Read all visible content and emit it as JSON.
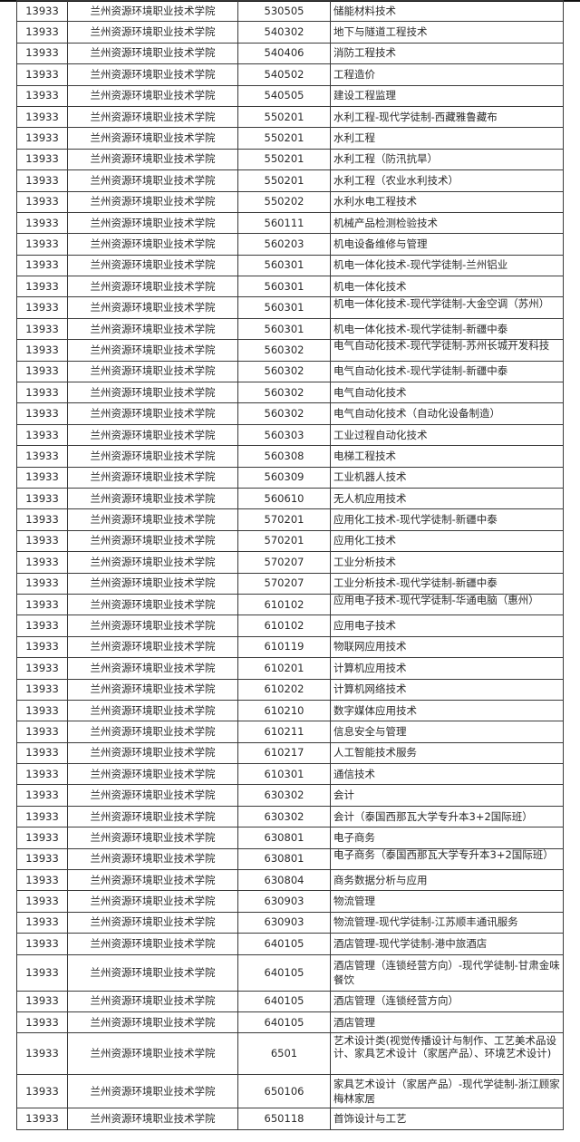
{
  "school_id": "13933",
  "school_name": "兰州资源环境职业技术学院",
  "rows": [
    {
      "code": "530505",
      "major": "储能材料技术"
    },
    {
      "code": "540302",
      "major": "地下与隧道工程技术"
    },
    {
      "code": "540406",
      "major": "消防工程技术"
    },
    {
      "code": "540502",
      "major": "工程造价"
    },
    {
      "code": "540505",
      "major": "建设工程监理"
    },
    {
      "code": "550201",
      "major": "水利工程-现代学徒制-西藏雅鲁藏布"
    },
    {
      "code": "550201",
      "major": "水利工程"
    },
    {
      "code": "550201",
      "major": "水利工程（防汛抗旱）"
    },
    {
      "code": "550201",
      "major": "水利工程（农业水利技术）"
    },
    {
      "code": "550202",
      "major": "水利水电工程技术"
    },
    {
      "code": "560111",
      "major": "机械产品检测检验技术"
    },
    {
      "code": "560203",
      "major": "机电设备维修与管理"
    },
    {
      "code": "560301",
      "major": "机电一体化技术-现代学徒制-兰州铝业"
    },
    {
      "code": "560301",
      "major": "机电一体化技术"
    },
    {
      "code": "560301",
      "major": "机电一体化技术-现代学徒制-大金空调（苏州）",
      "style": "clip"
    },
    {
      "code": "560301",
      "major": "机电一体化技术-现代学徒制-新疆中泰"
    },
    {
      "code": "560302",
      "major": "电气自动化技术-现代学徒制-苏州长城开发科技",
      "style": "clip"
    },
    {
      "code": "560302",
      "major": "电气自动化技术-现代学徒制-新疆中泰"
    },
    {
      "code": "560302",
      "major": "电气自动化技术"
    },
    {
      "code": "560302",
      "major": "电气自动化技术（自动化设备制造）"
    },
    {
      "code": "560303",
      "major": "工业过程自动化技术"
    },
    {
      "code": "560308",
      "major": "电梯工程技术"
    },
    {
      "code": "560309",
      "major": "工业机器人技术"
    },
    {
      "code": "560610",
      "major": "无人机应用技术"
    },
    {
      "code": "570201",
      "major": "应用化工技术-现代学徒制-新疆中泰"
    },
    {
      "code": "570201",
      "major": "应用化工技术"
    },
    {
      "code": "570207",
      "major": "工业分析技术"
    },
    {
      "code": "570207",
      "major": "工业分析技术-现代学徒制-新疆中泰"
    },
    {
      "code": "610102",
      "major": "应用电子技术-现代学徒制-华通电脑（惠州）",
      "style": "clip"
    },
    {
      "code": "610102",
      "major": "应用电子技术"
    },
    {
      "code": "610119",
      "major": "物联网应用技术"
    },
    {
      "code": "610201",
      "major": "计算机应用技术"
    },
    {
      "code": "610202",
      "major": "计算机网络技术"
    },
    {
      "code": "610210",
      "major": "数字媒体应用技术"
    },
    {
      "code": "610211",
      "major": "信息安全与管理"
    },
    {
      "code": "610217",
      "major": "人工智能技术服务"
    },
    {
      "code": "610301",
      "major": "通信技术"
    },
    {
      "code": "630302",
      "major": "会计"
    },
    {
      "code": "630302",
      "major": "会计（泰国西那瓦大学专升本3+2国际班）"
    },
    {
      "code": "630801",
      "major": "电子商务"
    },
    {
      "code": "630801",
      "major": "电子商务（泰国西那瓦大学专升本3+2国际班）",
      "style": "clip"
    },
    {
      "code": "630804",
      "major": "商务数据分析与应用"
    },
    {
      "code": "630903",
      "major": "物流管理"
    },
    {
      "code": "630903",
      "major": "物流管理-现代学徒制-江苏顺丰通讯服务"
    },
    {
      "code": "640105",
      "major": "酒店管理-现代学徒制-港中旅酒店"
    },
    {
      "code": "640105",
      "major": "酒店管理（连锁经营方向）-现代学徒制-甘肃金味餐饮",
      "style": "tall2"
    },
    {
      "code": "640105",
      "major": "酒店管理（连锁经营方向）"
    },
    {
      "code": "640105",
      "major": "酒店管理"
    },
    {
      "code": "6501",
      "major": "艺术设计类(视觉传播设计与制作、工艺美术品设计、家具艺术设计（家居产品）、环境艺术设计)",
      "style": "tall3"
    },
    {
      "code": "650106",
      "major": "家具艺术设计（家居产品）-现代学徒制-浙江顾家梅林家居",
      "style": "tall2b"
    },
    {
      "code": "650118",
      "major": "首饰设计与工艺"
    }
  ]
}
